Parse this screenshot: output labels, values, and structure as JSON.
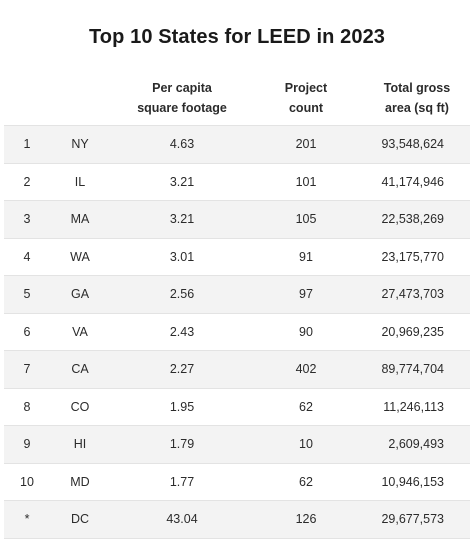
{
  "title": "Top 10 States for LEED in 2023",
  "columns": {
    "per_capita": [
      "Per capita",
      "square footage"
    ],
    "project_count": [
      "Project",
      "count"
    ],
    "total_gross_area": [
      "Total gross",
      "area (sq ft)"
    ]
  },
  "rows": [
    {
      "rank": "1",
      "state": "NY",
      "per_capita": "4.63",
      "project_count": "201",
      "total_gross_area": "93,548,624"
    },
    {
      "rank": "2",
      "state": "IL",
      "per_capita": "3.21",
      "project_count": "101",
      "total_gross_area": "41,174,946"
    },
    {
      "rank": "3",
      "state": "MA",
      "per_capita": "3.21",
      "project_count": "105",
      "total_gross_area": "22,538,269"
    },
    {
      "rank": "4",
      "state": "WA",
      "per_capita": "3.01",
      "project_count": "91",
      "total_gross_area": "23,175,770"
    },
    {
      "rank": "5",
      "state": "GA",
      "per_capita": "2.56",
      "project_count": "97",
      "total_gross_area": "27,473,703"
    },
    {
      "rank": "6",
      "state": "VA",
      "per_capita": "2.43",
      "project_count": "90",
      "total_gross_area": "20,969,235"
    },
    {
      "rank": "7",
      "state": "CA",
      "per_capita": "2.27",
      "project_count": "402",
      "total_gross_area": "89,774,704"
    },
    {
      "rank": "8",
      "state": "CO",
      "per_capita": "1.95",
      "project_count": "62",
      "total_gross_area": "11,246,113"
    },
    {
      "rank": "9",
      "state": "HI",
      "per_capita": "1.79",
      "project_count": "10",
      "total_gross_area": "2,609,493"
    },
    {
      "rank": "10",
      "state": "MD",
      "per_capita": "1.77",
      "project_count": "62",
      "total_gross_area": "10,946,153"
    },
    {
      "rank": "*",
      "state": "DC",
      "per_capita": "43.04",
      "project_count": "126",
      "total_gross_area": "29,677,573"
    }
  ]
}
